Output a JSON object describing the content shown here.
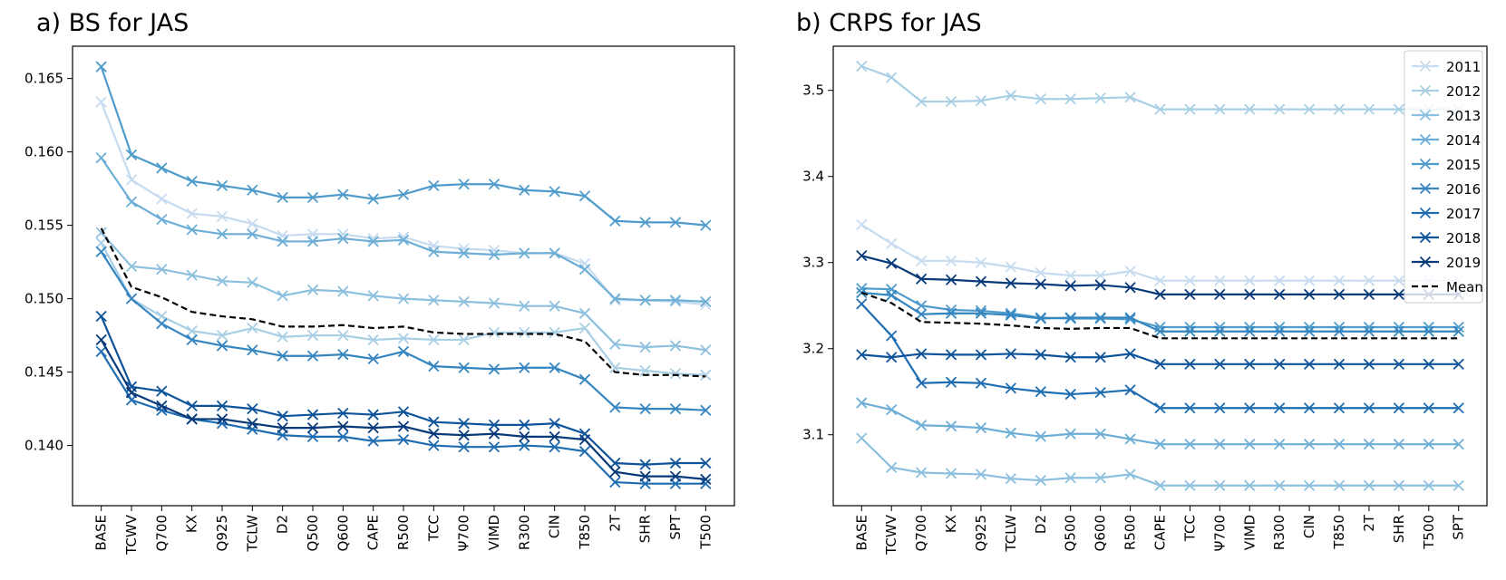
{
  "chart_data": [
    {
      "type": "line",
      "title": "a) BS for JAS",
      "categories": [
        "BASE",
        "TCWV",
        "Q700",
        "KX",
        "Q925",
        "TCLW",
        "D2",
        "Q500",
        "Q600",
        "CAPE",
        "R500",
        "TCC",
        "Ψ700",
        "VIMD",
        "R300",
        "CIN",
        "T850",
        "2T",
        "SHR",
        "SPT",
        "T500"
      ],
      "ylim": [
        0.1359,
        0.1672
      ],
      "yticks": [
        {
          "value": 0.14,
          "label": "0.140"
        },
        {
          "value": 0.145,
          "label": "0.145"
        },
        {
          "value": 0.15,
          "label": "0.150"
        },
        {
          "value": 0.155,
          "label": "0.155"
        },
        {
          "value": 0.16,
          "label": "0.160"
        },
        {
          "value": 0.165,
          "label": "0.165"
        }
      ],
      "series": [
        {
          "color": "#c6dbef",
          "values": [
            0.1634,
            0.1581,
            0.1568,
            0.1558,
            0.1556,
            0.1551,
            0.1543,
            0.1544,
            0.1544,
            0.1541,
            0.1542,
            0.1536,
            0.1534,
            0.1533,
            0.1531,
            0.1531,
            0.1524,
            0.1499,
            0.1499,
            0.1498,
            0.1496
          ]
        },
        {
          "color": "#a9cfe5",
          "values": [
            0.1538,
            0.15,
            0.1488,
            0.1478,
            0.1475,
            0.148,
            0.1474,
            0.1475,
            0.1475,
            0.1472,
            0.1473,
            0.1472,
            0.1472,
            0.1477,
            0.1477,
            0.1477,
            0.148,
            0.1453,
            0.1451,
            0.1449,
            0.1448
          ]
        },
        {
          "color": "#8dc0de",
          "values": [
            0.1545,
            0.1522,
            0.152,
            0.1516,
            0.1512,
            0.1511,
            0.1502,
            0.1506,
            0.1505,
            0.1502,
            0.15,
            0.1499,
            0.1498,
            0.1497,
            0.1495,
            0.1495,
            0.149,
            0.1469,
            0.1467,
            0.1468,
            0.1465
          ]
        },
        {
          "color": "#6caed6",
          "values": [
            0.1596,
            0.1566,
            0.1554,
            0.1547,
            0.1544,
            0.1544,
            0.1539,
            0.1539,
            0.1541,
            0.1539,
            0.154,
            0.1532,
            0.1531,
            0.153,
            0.1531,
            0.1531,
            0.152,
            0.15,
            0.1499,
            0.1499,
            0.1498
          ]
        },
        {
          "color": "#4f9bcb",
          "values": [
            0.1658,
            0.1598,
            0.1589,
            0.158,
            0.1577,
            0.1574,
            0.1569,
            0.1569,
            0.1571,
            0.1568,
            0.1571,
            0.1577,
            0.1578,
            0.1578,
            0.1574,
            0.1573,
            0.157,
            0.1553,
            0.1552,
            0.1552,
            0.155
          ]
        },
        {
          "color": "#3585c0",
          "values": [
            0.1532,
            0.15,
            0.1483,
            0.1472,
            0.1468,
            0.1465,
            0.1461,
            0.1461,
            0.1462,
            0.1459,
            0.1464,
            0.1454,
            0.1453,
            0.1452,
            0.1453,
            0.1453,
            0.1445,
            0.1426,
            0.1425,
            0.1425,
            0.1424
          ]
        },
        {
          "color": "#1f6db1",
          "values": [
            0.1464,
            0.1431,
            0.1424,
            0.1418,
            0.1415,
            0.1411,
            0.1407,
            0.1406,
            0.1406,
            0.1403,
            0.1404,
            0.14,
            0.1399,
            0.1399,
            0.14,
            0.1399,
            0.1396,
            0.1375,
            0.1374,
            0.1374,
            0.1374
          ]
        },
        {
          "color": "#0d539a",
          "values": [
            0.1488,
            0.144,
            0.1437,
            0.1427,
            0.1427,
            0.1425,
            0.142,
            0.1421,
            0.1422,
            0.1421,
            0.1423,
            0.1416,
            0.1415,
            0.1414,
            0.1414,
            0.1415,
            0.1408,
            0.1388,
            0.1387,
            0.1388,
            0.1388
          ]
        },
        {
          "color": "#083a7a",
          "values": [
            0.1472,
            0.1436,
            0.1427,
            0.1418,
            0.1418,
            0.1415,
            0.1412,
            0.1412,
            0.1413,
            0.1412,
            0.1413,
            0.1408,
            0.1407,
            0.1408,
            0.1406,
            0.1406,
            0.1404,
            0.1382,
            0.1379,
            0.1379,
            0.1377
          ]
        },
        {
          "color": "#000000",
          "linestyle": "dashed",
          "values": [
            0.1548,
            0.1508,
            0.1501,
            0.1491,
            0.1488,
            0.1486,
            0.1481,
            0.1481,
            0.1482,
            0.148,
            0.1481,
            0.1477,
            0.1476,
            0.1476,
            0.1476,
            0.1476,
            0.1471,
            0.145,
            0.1448,
            0.1448,
            0.1447
          ]
        }
      ]
    },
    {
      "type": "line",
      "title": "b) CRPS for JAS",
      "legend": "upper right",
      "categories": [
        "BASE",
        "TCWV",
        "Q700",
        "KX",
        "Q925",
        "TCLW",
        "D2",
        "Q500",
        "Q600",
        "R500",
        "CAPE",
        "TCC",
        "Ψ700",
        "VIMD",
        "R300",
        "CIN",
        "T850",
        "2T",
        "SHR",
        "T500",
        "SPT"
      ],
      "ylim": [
        3.0176,
        3.5513
      ],
      "yticks": [
        3.1,
        3.2,
        3.3,
        3.4,
        3.5
      ],
      "series": [
        {
          "name": "2011",
          "color": "#c6dbef",
          "values": [
            3.344,
            3.322,
            3.302,
            3.302,
            3.3,
            3.295,
            3.288,
            3.285,
            3.285,
            3.29,
            3.279,
            3.279,
            3.279,
            3.279,
            3.279,
            3.279,
            3.279,
            3.279,
            3.279,
            3.279,
            3.279
          ]
        },
        {
          "name": "2012",
          "color": "#a9cfe5",
          "values": [
            3.528,
            3.515,
            3.487,
            3.487,
            3.488,
            3.494,
            3.49,
            3.49,
            3.491,
            3.492,
            3.478,
            3.478,
            3.478,
            3.478,
            3.478,
            3.478,
            3.478,
            3.478,
            3.478,
            3.478,
            3.478
          ]
        },
        {
          "name": "2013",
          "color": "#8dc0de",
          "values": [
            3.096,
            3.062,
            3.056,
            3.055,
            3.054,
            3.049,
            3.047,
            3.05,
            3.05,
            3.054,
            3.041,
            3.041,
            3.041,
            3.041,
            3.041,
            3.041,
            3.041,
            3.041,
            3.041,
            3.041,
            3.041
          ]
        },
        {
          "name": "2014",
          "color": "#6caed6",
          "values": [
            3.137,
            3.129,
            3.111,
            3.11,
            3.108,
            3.102,
            3.098,
            3.101,
            3.101,
            3.095,
            3.089,
            3.089,
            3.089,
            3.089,
            3.089,
            3.089,
            3.089,
            3.089,
            3.089,
            3.089,
            3.089
          ]
        },
        {
          "name": "2015",
          "color": "#4f9bcb",
          "values": [
            3.27,
            3.269,
            3.25,
            3.245,
            3.244,
            3.241,
            3.236,
            3.235,
            3.235,
            3.234,
            3.225,
            3.225,
            3.225,
            3.225,
            3.225,
            3.225,
            3.225,
            3.225,
            3.225,
            3.225,
            3.225
          ]
        },
        {
          "name": "2016",
          "color": "#3585c0",
          "values": [
            3.265,
            3.262,
            3.24,
            3.241,
            3.241,
            3.239,
            3.235,
            3.236,
            3.236,
            3.236,
            3.22,
            3.22,
            3.22,
            3.22,
            3.22,
            3.22,
            3.22,
            3.22,
            3.22,
            3.22,
            3.22
          ]
        },
        {
          "name": "2017",
          "color": "#1f6db1",
          "values": [
            3.252,
            3.215,
            3.16,
            3.161,
            3.16,
            3.154,
            3.15,
            3.147,
            3.149,
            3.152,
            3.131,
            3.131,
            3.131,
            3.131,
            3.131,
            3.131,
            3.131,
            3.131,
            3.131,
            3.131,
            3.131
          ]
        },
        {
          "name": "2018",
          "color": "#0d539a",
          "values": [
            3.193,
            3.19,
            3.194,
            3.193,
            3.193,
            3.194,
            3.193,
            3.19,
            3.19,
            3.194,
            3.182,
            3.182,
            3.182,
            3.182,
            3.182,
            3.182,
            3.182,
            3.182,
            3.182,
            3.182,
            3.182
          ]
        },
        {
          "name": "2019",
          "color": "#083a7a",
          "values": [
            3.308,
            3.299,
            3.281,
            3.28,
            3.278,
            3.276,
            3.275,
            3.273,
            3.274,
            3.271,
            3.263,
            3.263,
            3.263,
            3.263,
            3.263,
            3.263,
            3.263,
            3.263,
            3.263,
            3.263,
            3.263
          ]
        },
        {
          "name": "Mean",
          "color": "#000000",
          "linestyle": "dashed",
          "values": [
            3.265,
            3.253,
            3.231,
            3.23,
            3.229,
            3.227,
            3.224,
            3.223,
            3.224,
            3.224,
            3.212,
            3.212,
            3.212,
            3.212,
            3.212,
            3.212,
            3.212,
            3.212,
            3.212,
            3.212,
            3.212
          ]
        }
      ]
    }
  ]
}
